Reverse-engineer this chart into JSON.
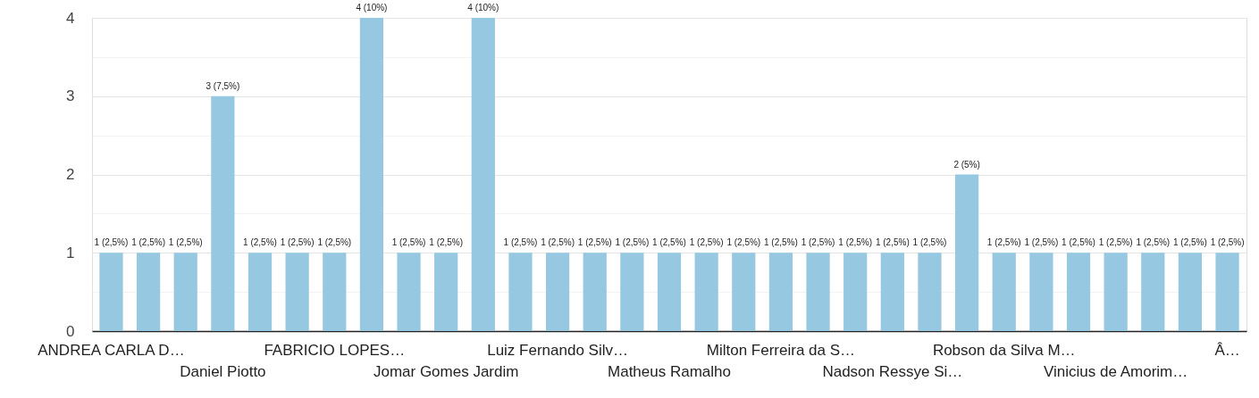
{
  "chart_data": {
    "type": "bar",
    "categories": [
      "ANDREA CARLA D…",
      null,
      null,
      "Daniel Piotto",
      null,
      null,
      "FABRICIO LOPES…",
      null,
      null,
      "Jomar Gomes Jardim",
      null,
      null,
      "Luiz Fernando Silv…",
      null,
      null,
      "Matheus Ramalho",
      null,
      null,
      "Milton Ferreira da S…",
      null,
      null,
      "Nadson Ressye Si…",
      null,
      null,
      "Robson da Silva M…",
      null,
      null,
      "Vinicius de Amorim…",
      null,
      null,
      "Â…"
    ],
    "values": [
      1,
      1,
      1,
      3,
      1,
      1,
      1,
      4,
      1,
      1,
      4,
      1,
      1,
      1,
      1,
      1,
      1,
      1,
      1,
      1,
      1,
      1,
      1,
      2,
      1,
      1,
      1,
      1,
      1,
      1,
      1
    ],
    "value_labels": [
      "1 (2,5%)",
      "1 (2,5%)",
      "1 (2,5%)",
      "3 (7,5%)",
      "1 (2,5%)",
      "1 (2,5%)",
      "1 (2,5%)",
      "4 (10%)",
      "1 (2,5%)",
      "1 (2,5%)",
      "4 (10%)",
      "1 (2,5%)",
      "1 (2,5%)",
      "1 (2,5%)",
      "1 (2,5%)",
      "1 (2,5%)",
      "1 (2,5%)",
      "1 (2,5%)",
      "1 (2,5%)",
      "1 (2,5%)",
      "1 (2,5%)",
      "1 (2,5%)",
      "1 (2,5%)",
      "2 (5%)",
      "1 (2,5%)",
      "1 (2,5%)",
      "1 (2,5%)",
      "1 (2,5%)",
      "1 (2,5%)",
      "1 (2,5%)",
      "1 (2,5%)"
    ],
    "color": "#97c8e2",
    "ylim": [
      0,
      4
    ],
    "yticks": [
      0,
      {
        "value": 0.5,
        "label": null
      },
      1,
      {
        "value": 1.5,
        "label": null
      },
      2,
      {
        "value": 2.5,
        "label": null
      },
      3,
      {
        "value": 3.5,
        "label": null
      },
      4
    ],
    "grid": "y"
  }
}
